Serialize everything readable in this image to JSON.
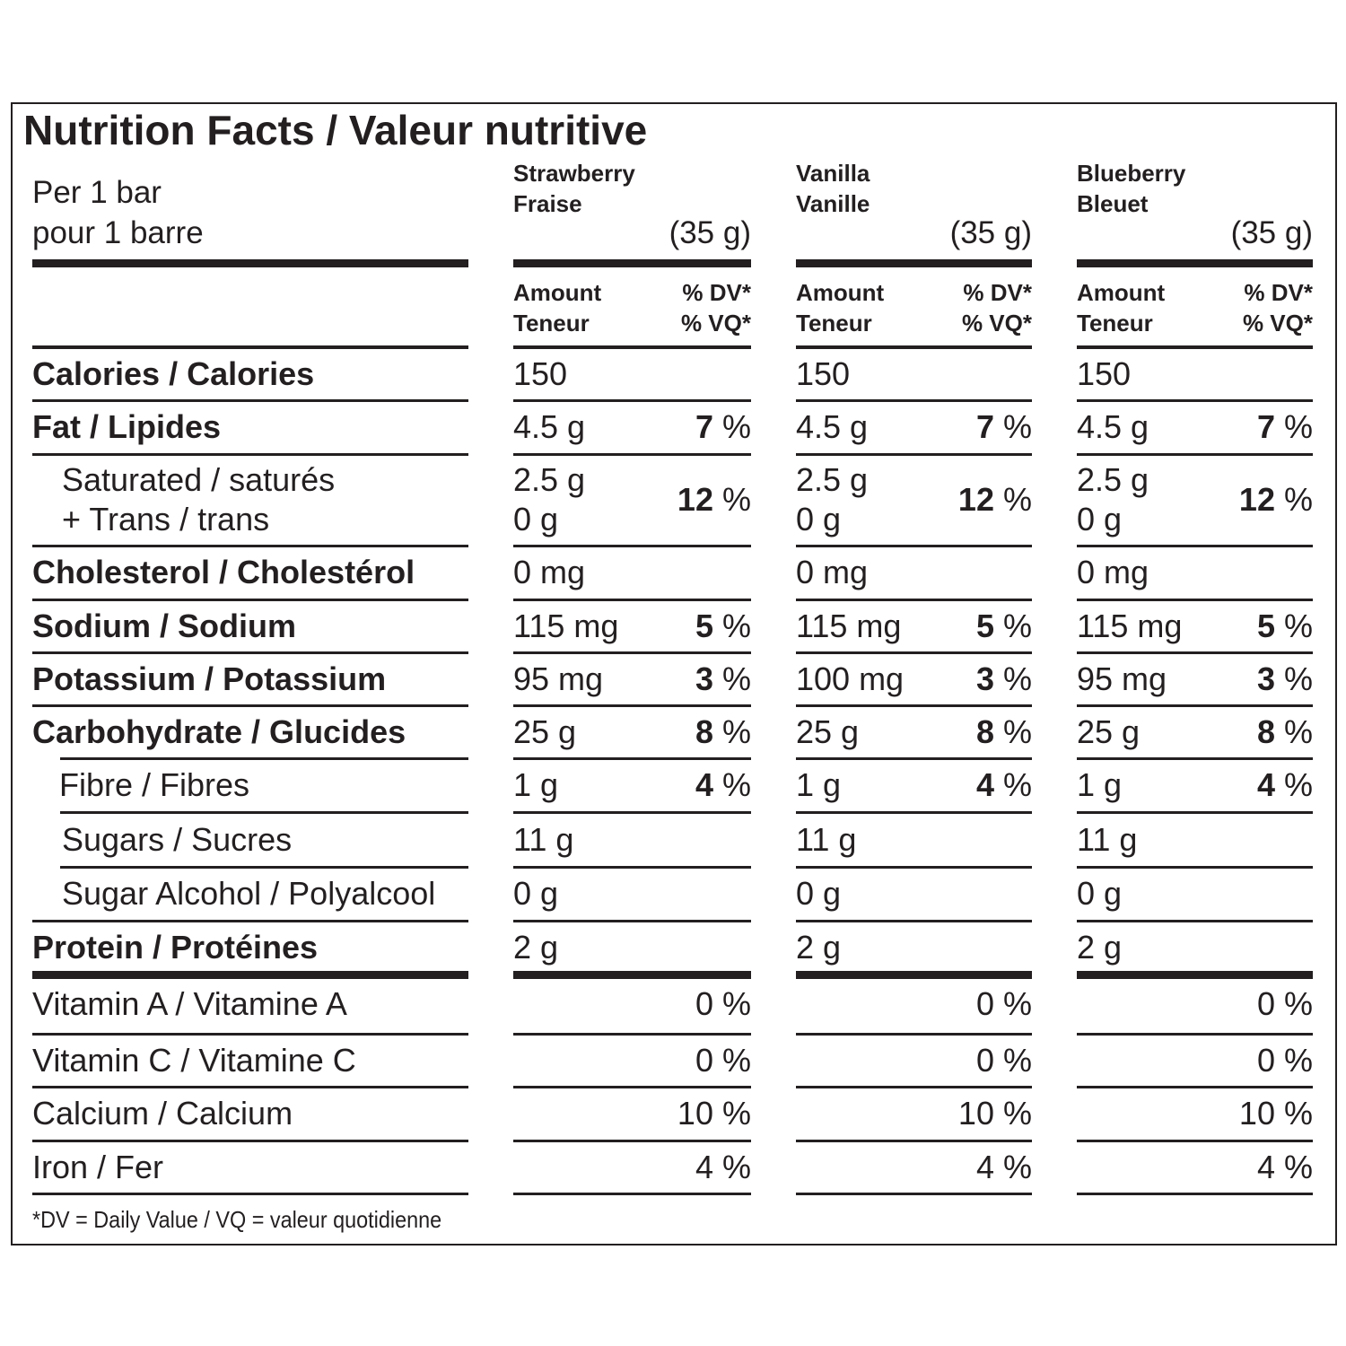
{
  "title": "Nutrition Facts / Valeur nutritive",
  "serving": {
    "line1": "Per 1 bar",
    "line2": "pour 1 barre"
  },
  "flavors": [
    {
      "name_en": "Strawberry",
      "name_fr": "Fraise",
      "weight": "(35 g)"
    },
    {
      "name_en": "Vanilla",
      "name_fr": "Vanille",
      "weight": "(35 g)"
    },
    {
      "name_en": "Blueberry",
      "name_fr": "Bleuet",
      "weight": "(35 g)"
    }
  ],
  "column_headers": {
    "amount_en": "Amount",
    "amount_fr": "Teneur",
    "dv_en": "% DV*",
    "dv_fr": "% VQ*"
  },
  "rows": [
    {
      "label": "Calories / Calories",
      "bold": true,
      "values": [
        [
          "150",
          ""
        ],
        [
          "150",
          ""
        ],
        [
          "150",
          ""
        ]
      ]
    },
    {
      "label": "Fat / Lipides",
      "bold": true,
      "values": [
        [
          "4.5 g",
          "7"
        ],
        [
          "4.5 g",
          "7"
        ],
        [
          "4.5 g",
          "7"
        ]
      ]
    },
    {
      "label": "Saturated / saturés",
      "label2": "+ Trans / trans",
      "bold": false,
      "values": [
        [
          "2.5 g",
          "12",
          "0 g"
        ],
        [
          "2.5 g",
          "12",
          "0 g"
        ],
        [
          "2.5 g",
          "12",
          "0 g"
        ]
      ]
    },
    {
      "label": "Cholesterol / Cholestérol",
      "bold": true,
      "values": [
        [
          "0 mg",
          ""
        ],
        [
          "0 mg",
          ""
        ],
        [
          "0 mg",
          ""
        ]
      ]
    },
    {
      "label": "Sodium / Sodium",
      "bold": true,
      "values": [
        [
          "115 mg",
          "5"
        ],
        [
          "115 mg",
          "5"
        ],
        [
          "115 mg",
          "5"
        ]
      ]
    },
    {
      "label": "Potassium / Potassium",
      "bold": true,
      "values": [
        [
          "95 mg",
          "3"
        ],
        [
          "100 mg",
          "3"
        ],
        [
          "95 mg",
          "3"
        ]
      ]
    },
    {
      "label": "Carbohydrate / Glucides",
      "bold": true,
      "values": [
        [
          "25 g",
          "8"
        ],
        [
          "25 g",
          "8"
        ],
        [
          "25 g",
          "8"
        ]
      ]
    },
    {
      "label": "Fibre / Fibres",
      "bold": false,
      "values": [
        [
          "1 g",
          "4"
        ],
        [
          "1 g",
          "4"
        ],
        [
          "1 g",
          "4"
        ]
      ]
    },
    {
      "label": "Sugars / Sucres",
      "bold": false,
      "values": [
        [
          "11 g",
          ""
        ],
        [
          "11 g",
          ""
        ],
        [
          "11 g",
          ""
        ]
      ]
    },
    {
      "label": "Sugar Alcohol / Polyalcool",
      "bold": false,
      "values": [
        [
          "0 g",
          ""
        ],
        [
          "0 g",
          ""
        ],
        [
          "0 g",
          ""
        ]
      ]
    },
    {
      "label": "Protein / Protéines",
      "bold": true,
      "values": [
        [
          "2 g",
          ""
        ],
        [
          "2 g",
          ""
        ],
        [
          "2 g",
          ""
        ]
      ]
    },
    {
      "label": "Vitamin A / Vitamine A",
      "bold": false,
      "vitamin": true,
      "values": [
        "0",
        "0",
        "0"
      ]
    },
    {
      "label": "Vitamin C / Vitamine C",
      "bold": false,
      "vitamin": true,
      "values": [
        "0",
        "0",
        "0"
      ]
    },
    {
      "label": "Calcium / Calcium",
      "bold": false,
      "vitamin": true,
      "values": [
        "10",
        "10",
        "10"
      ]
    },
    {
      "label": "Iron / Fer",
      "bold": false,
      "vitamin": true,
      "values": [
        "4",
        "4",
        "4"
      ]
    }
  ],
  "percent_sign": "%",
  "footnote": "*DV = Daily Value / VQ = valeur quotidienne"
}
